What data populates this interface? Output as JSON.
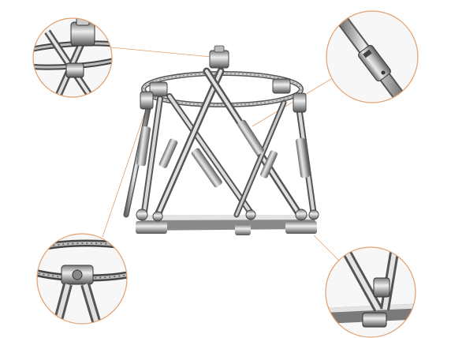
{
  "image": {
    "subject": "hexapod-external-fixator",
    "background_color": "#ffffff",
    "callout_border_color": "#e0a070",
    "metal_light": "#e6e6e6",
    "metal_mid": "#a9a9a9",
    "metal_dark": "#555555"
  },
  "callouts": [
    {
      "name": "callout-top-left-ring-clamp"
    },
    {
      "name": "callout-top-right-strut-joint"
    },
    {
      "name": "callout-bottom-left-ring-hinge"
    },
    {
      "name": "callout-bottom-right-base-clamp"
    }
  ]
}
